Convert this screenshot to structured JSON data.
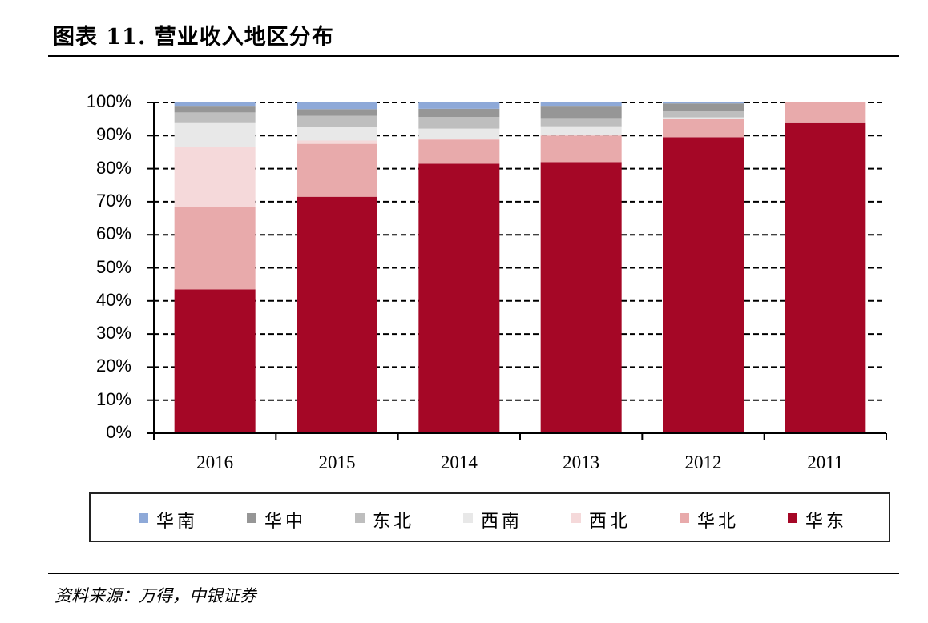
{
  "header": {
    "title": "图表 11. 营业收入地区分布"
  },
  "footer": {
    "source": "资料来源：万得，中银证券"
  },
  "colors": {
    "华南": "#8EA9D8",
    "华中": "#969696",
    "东北": "#BEBEBE",
    "西南": "#E8E8E8",
    "西北": "#F5D9DA",
    "华北": "#E8AAAB",
    "华东": "#A50726"
  },
  "legend": {
    "items": [
      {
        "label": "华南",
        "color": "#8EA9D8"
      },
      {
        "label": "华中",
        "color": "#969696"
      },
      {
        "label": "东北",
        "color": "#BEBEBE"
      },
      {
        "label": "西南",
        "color": "#E8E8E8"
      },
      {
        "label": "西北",
        "color": "#F5D9DA"
      },
      {
        "label": "华北",
        "color": "#E8AAAB"
      },
      {
        "label": "华东",
        "color": "#A50726"
      }
    ]
  },
  "chart_data": {
    "type": "bar",
    "stacked": true,
    "percent": true,
    "title": "图表 11. 营业收入地区分布",
    "xlabel": "",
    "ylabel": "",
    "ylim": [
      0,
      100
    ],
    "yticks": [
      "0%",
      "10%",
      "20%",
      "30%",
      "40%",
      "50%",
      "60%",
      "70%",
      "80%",
      "90%",
      "100%"
    ],
    "grid": "horizontal dashed",
    "legend_position": "bottom",
    "categories": [
      "2016",
      "2015",
      "2014",
      "2013",
      "2012",
      "2011"
    ],
    "series": [
      {
        "name": "华东",
        "values": [
          43.5,
          71.5,
          81.5,
          82.0,
          89.5,
          94.0
        ]
      },
      {
        "name": "华北",
        "values": [
          25.0,
          16.0,
          7.3,
          8.0,
          5.5,
          6.0
        ]
      },
      {
        "name": "西北",
        "values": [
          18.0,
          1.0,
          0.3,
          0.3,
          0.0,
          0.0
        ]
      },
      {
        "name": "西南",
        "values": [
          7.5,
          4.0,
          3.0,
          2.5,
          0.5,
          0.0
        ]
      },
      {
        "name": "东北",
        "values": [
          3.0,
          3.5,
          3.5,
          2.5,
          2.0,
          0.0
        ]
      },
      {
        "name": "华中",
        "values": [
          2.0,
          2.0,
          2.5,
          3.7,
          2.2,
          0.0
        ]
      },
      {
        "name": "华南",
        "values": [
          1.0,
          2.0,
          2.0,
          1.0,
          0.3,
          0.0
        ]
      }
    ]
  }
}
